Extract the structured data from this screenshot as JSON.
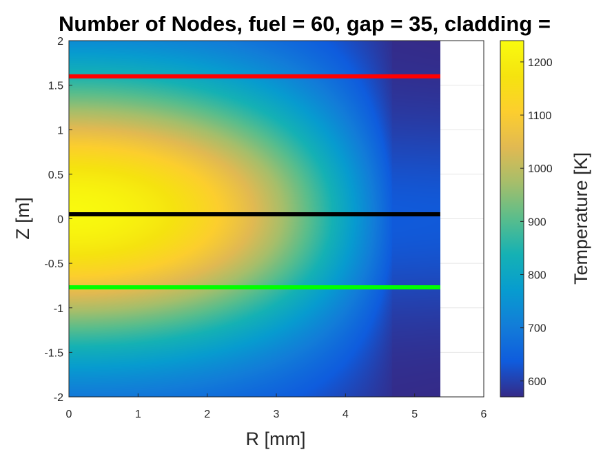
{
  "chart_data": {
    "type": "heatmap",
    "title": "Number of Nodes, fuel = 60, gap = 35, cladding =",
    "xlabel": "R [mm]",
    "ylabel": "Z [m]",
    "colorbar_label": "Temperature [K]",
    "xlim": [
      0,
      6
    ],
    "ylim": [
      -2,
      2
    ],
    "clim": [
      570,
      1240
    ],
    "x_ticks": [
      "0",
      "1",
      "2",
      "3",
      "4",
      "5",
      "6"
    ],
    "y_ticks": [
      "2",
      "1.5",
      "1",
      "0.5",
      "0",
      "-0.5",
      "-1",
      "-1.5",
      "-2"
    ],
    "colorbar_ticks": [
      "1200",
      "1100",
      "1000",
      "900",
      "800",
      "700",
      "600"
    ],
    "colorbar_tick_values": [
      1200,
      1100,
      1000,
      900,
      800,
      700,
      600
    ],
    "colormap": "parula",
    "grid": true,
    "regions": [
      {
        "name": "fuel",
        "r_min": 0,
        "r_max": 4.67
      },
      {
        "name": "gap",
        "r_min": 4.67,
        "r_max": 4.69
      },
      {
        "name": "cladding",
        "r_min": 4.69,
        "r_max": 5.37
      }
    ],
    "temperature_field": {
      "coolant_temp_range": [
        575,
        640
      ],
      "peak_temp": 1235,
      "peak_location": {
        "r": 0,
        "z": 0.1
      }
    },
    "horizontal_lines": [
      {
        "z": 1.6,
        "color": "#ff0000"
      },
      {
        "z": 0.05,
        "color": "#000000"
      },
      {
        "z": -0.77,
        "color": "#00ff00"
      }
    ]
  }
}
